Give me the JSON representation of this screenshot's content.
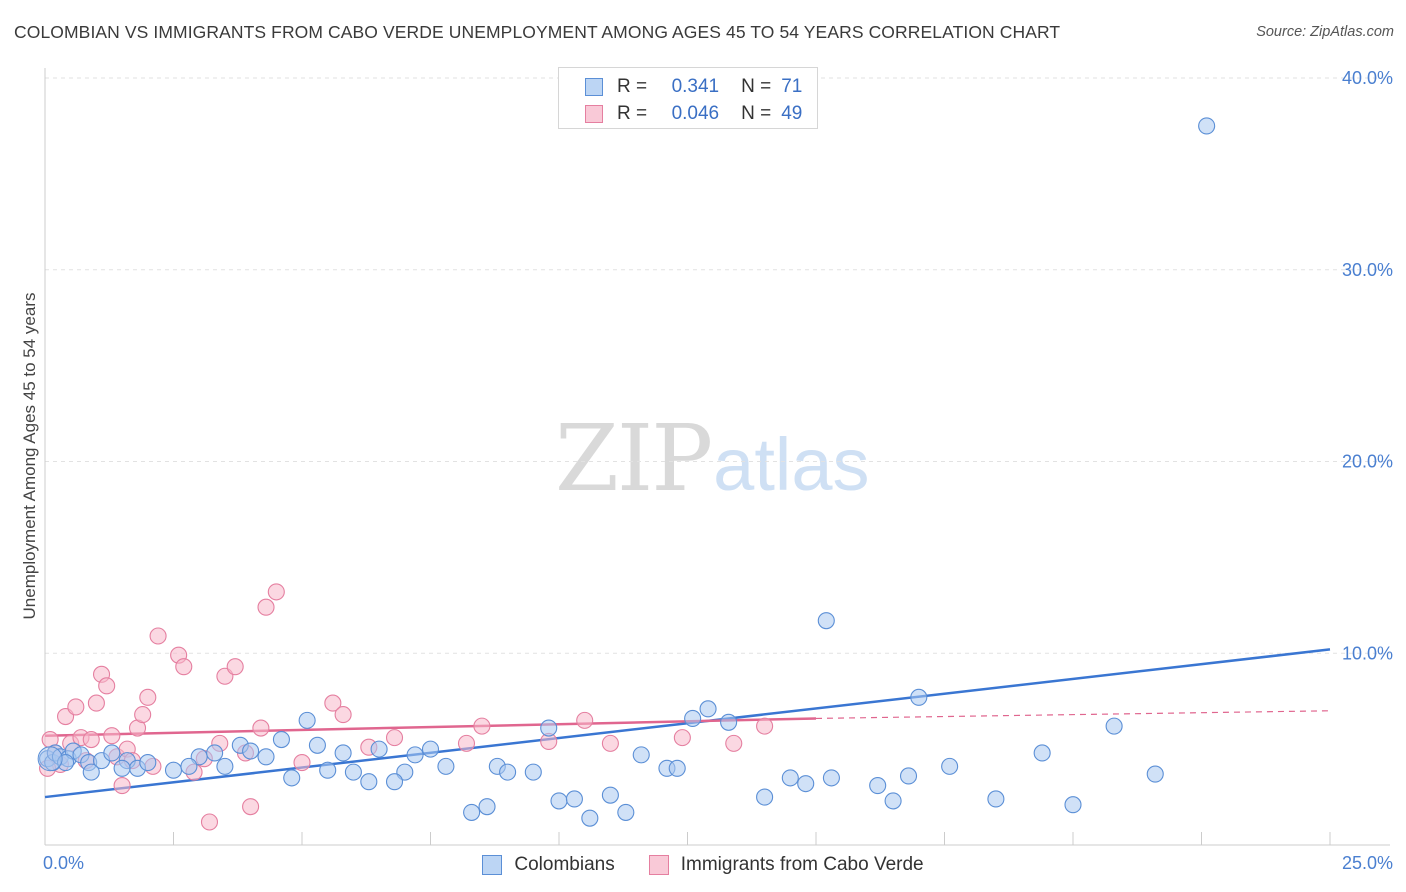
{
  "title": "COLOMBIAN VS IMMIGRANTS FROM CABO VERDE UNEMPLOYMENT AMONG AGES 45 TO 54 YEARS CORRELATION CHART",
  "source": "Source: ZipAtlas.com",
  "watermark": {
    "zip": "ZIP",
    "atlas": "atlas"
  },
  "legend": {
    "rows": [
      {
        "r_label": "R =",
        "r_value": "0.341",
        "n_label": "N =",
        "n_value": "71",
        "color": "#a9c8f0",
        "border": "#5b8fd6"
      },
      {
        "r_label": "R =",
        "r_value": "0.046",
        "n_label": "N =",
        "n_value": "49",
        "color": "#f7b8cb",
        "border": "#e57fa0"
      }
    ]
  },
  "bottom_legend": {
    "series1": "Colombians",
    "series2": "Immigrants from Cabo Verde"
  },
  "chart_data": {
    "type": "scatter",
    "title": "COLOMBIAN VS IMMIGRANTS FROM CABO VERDE UNEMPLOYMENT AMONG AGES 45 TO 54 YEARS CORRELATION CHART",
    "xlabel": "",
    "ylabel": "Unemployment Among Ages 45 to 54 years",
    "xlim": [
      0,
      25
    ],
    "ylim": [
      0,
      40
    ],
    "x_tick_labels": [
      "0.0%",
      "25.0%"
    ],
    "y_ticks": [
      10,
      20,
      30,
      40
    ],
    "y_tick_labels": [
      "10.0%",
      "20.0%",
      "30.0%",
      "40.0%"
    ],
    "grid": true,
    "series": [
      {
        "name": "Colombians",
        "color": "#a9c8f0",
        "edge": "#5b8fd6",
        "trend": {
          "x": [
            0,
            25
          ],
          "y": [
            2.5,
            10.2
          ],
          "color": "#3a76d2"
        },
        "points": [
          [
            0.05,
            4.5
          ],
          [
            0.15,
            4.3
          ],
          [
            0.2,
            4.8
          ],
          [
            0.3,
            4.6
          ],
          [
            0.45,
            4.5
          ],
          [
            0.55,
            4.9
          ],
          [
            0.7,
            4.7
          ],
          [
            0.85,
            4.3
          ],
          [
            1.1,
            4.4
          ],
          [
            1.3,
            4.8
          ],
          [
            1.6,
            4.4
          ],
          [
            1.8,
            4.0
          ],
          [
            2.0,
            4.3
          ],
          [
            2.5,
            3.9
          ],
          [
            3.0,
            4.6
          ],
          [
            3.3,
            4.8
          ],
          [
            3.5,
            4.1
          ],
          [
            3.8,
            5.2
          ],
          [
            4.3,
            4.6
          ],
          [
            4.6,
            5.5
          ],
          [
            4.8,
            3.5
          ],
          [
            5.1,
            6.5
          ],
          [
            5.3,
            5.2
          ],
          [
            5.5,
            3.9
          ],
          [
            5.8,
            4.8
          ],
          [
            6.0,
            3.8
          ],
          [
            6.3,
            3.3
          ],
          [
            6.5,
            5.0
          ],
          [
            7.0,
            3.8
          ],
          [
            7.2,
            4.7
          ],
          [
            7.5,
            5.0
          ],
          [
            7.8,
            4.1
          ],
          [
            8.3,
            1.7
          ],
          [
            8.6,
            2.0
          ],
          [
            8.8,
            4.1
          ],
          [
            9.0,
            3.8
          ],
          [
            9.5,
            3.8
          ],
          [
            10.0,
            2.3
          ],
          [
            10.3,
            2.4
          ],
          [
            10.6,
            1.4
          ],
          [
            11.0,
            2.6
          ],
          [
            11.3,
            1.7
          ],
          [
            11.6,
            4.7
          ],
          [
            12.1,
            4.0
          ],
          [
            12.6,
            6.6
          ],
          [
            12.9,
            7.1
          ],
          [
            13.3,
            6.4
          ],
          [
            14.0,
            2.5
          ],
          [
            14.5,
            3.5
          ],
          [
            14.8,
            3.2
          ],
          [
            15.3,
            3.5
          ],
          [
            16.2,
            3.1
          ],
          [
            16.5,
            2.3
          ],
          [
            16.8,
            3.6
          ],
          [
            17.0,
            7.7
          ],
          [
            17.6,
            4.1
          ],
          [
            18.5,
            2.4
          ],
          [
            19.4,
            4.8
          ],
          [
            20.0,
            2.1
          ],
          [
            20.8,
            6.2
          ],
          [
            21.6,
            3.7
          ],
          [
            22.6,
            37.5
          ],
          [
            15.2,
            11.7
          ],
          [
            1.5,
            4.0
          ],
          [
            2.8,
            4.1
          ],
          [
            4.0,
            4.9
          ],
          [
            6.8,
            3.3
          ],
          [
            9.8,
            6.1
          ],
          [
            0.9,
            3.8
          ],
          [
            0.4,
            4.3
          ],
          [
            12.3,
            4.0
          ]
        ]
      },
      {
        "name": "Immigrants from Cabo Verde",
        "color": "#f7b8cb",
        "edge": "#e57fa0",
        "trend": {
          "x": [
            0,
            15
          ],
          "y": [
            5.7,
            6.6
          ],
          "color": "#e0668f",
          "dashed_extension_to": [
            25,
            7.0
          ]
        },
        "points": [
          [
            0.1,
            5.5
          ],
          [
            0.2,
            4.8
          ],
          [
            0.3,
            4.2
          ],
          [
            0.4,
            6.7
          ],
          [
            0.5,
            5.3
          ],
          [
            0.6,
            7.2
          ],
          [
            0.7,
            5.6
          ],
          [
            0.8,
            4.4
          ],
          [
            0.9,
            5.5
          ],
          [
            1.0,
            7.4
          ],
          [
            1.1,
            8.9
          ],
          [
            1.2,
            8.3
          ],
          [
            1.3,
            5.7
          ],
          [
            1.4,
            4.6
          ],
          [
            1.5,
            3.1
          ],
          [
            1.6,
            5.0
          ],
          [
            1.7,
            4.4
          ],
          [
            1.8,
            6.1
          ],
          [
            1.9,
            6.8
          ],
          [
            2.0,
            7.7
          ],
          [
            2.1,
            4.1
          ],
          [
            2.2,
            10.9
          ],
          [
            2.6,
            9.9
          ],
          [
            2.7,
            9.3
          ],
          [
            2.9,
            3.8
          ],
          [
            3.1,
            4.5
          ],
          [
            3.2,
            1.2
          ],
          [
            3.4,
            5.3
          ],
          [
            3.5,
            8.8
          ],
          [
            3.7,
            9.3
          ],
          [
            3.9,
            4.8
          ],
          [
            4.0,
            2.0
          ],
          [
            4.2,
            6.1
          ],
          [
            4.3,
            12.4
          ],
          [
            4.5,
            13.2
          ],
          [
            5.0,
            4.3
          ],
          [
            5.6,
            7.4
          ],
          [
            5.8,
            6.8
          ],
          [
            6.3,
            5.1
          ],
          [
            6.8,
            5.6
          ],
          [
            8.2,
            5.3
          ],
          [
            8.5,
            6.2
          ],
          [
            9.8,
            5.4
          ],
          [
            10.5,
            6.5
          ],
          [
            11.0,
            5.3
          ],
          [
            12.4,
            5.6
          ],
          [
            13.4,
            5.3
          ],
          [
            14.0,
            6.2
          ],
          [
            0.05,
            4.0
          ]
        ]
      }
    ]
  }
}
